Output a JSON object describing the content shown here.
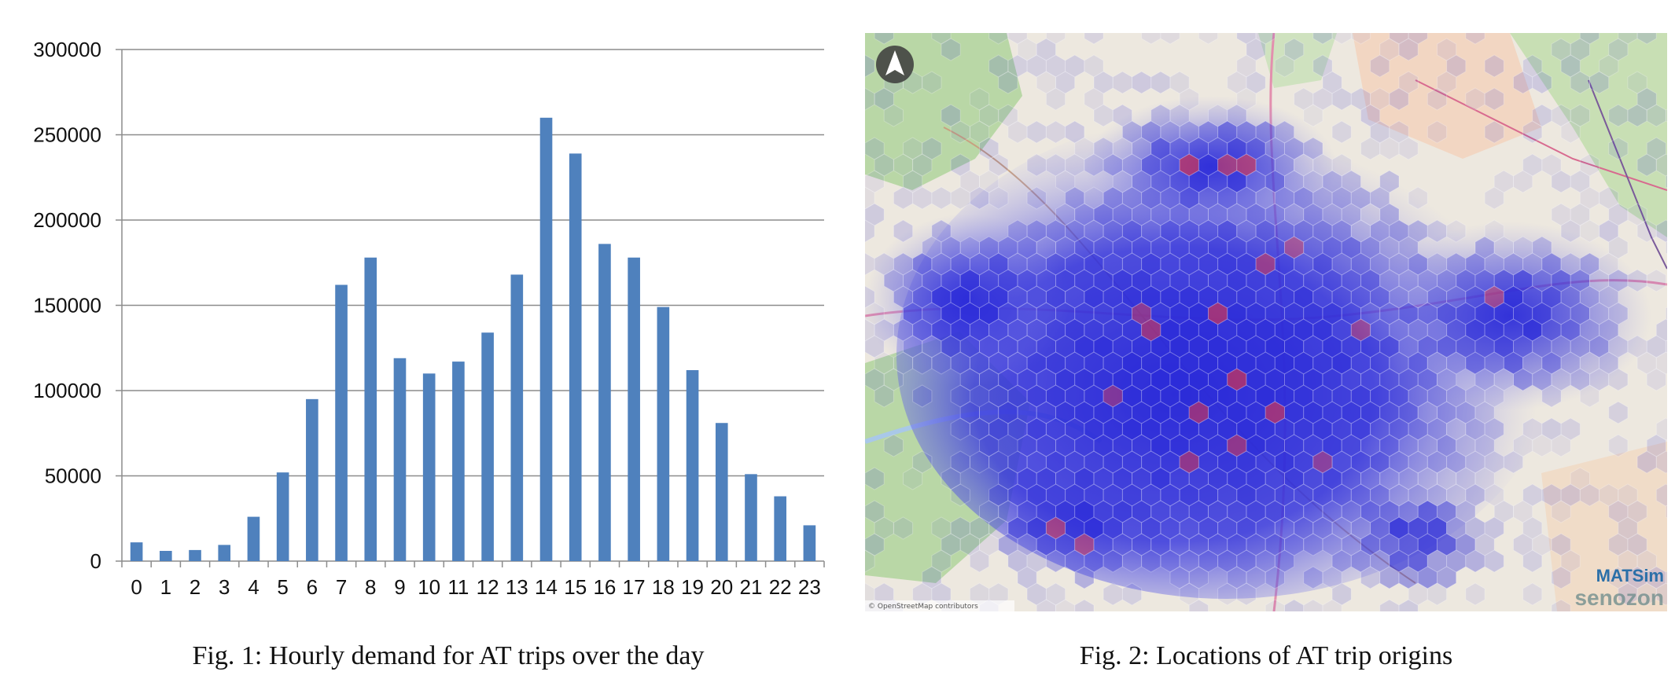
{
  "figure1": {
    "caption": "Fig. 1: Hourly demand for AT trips over the day",
    "chart_data": {
      "type": "bar",
      "categories": [
        "0",
        "1",
        "2",
        "3",
        "4",
        "5",
        "6",
        "7",
        "8",
        "9",
        "10",
        "11",
        "12",
        "13",
        "14",
        "15",
        "16",
        "17",
        "18",
        "19",
        "20",
        "21",
        "22",
        "23"
      ],
      "values": [
        11000,
        6000,
        6500,
        9500,
        26000,
        52000,
        95000,
        162000,
        178000,
        119000,
        110000,
        117000,
        134000,
        168000,
        260000,
        239000,
        186000,
        178000,
        149000,
        112000,
        81000,
        51000,
        38000,
        21000
      ],
      "ylim": [
        0,
        300000
      ],
      "yticks": [
        0,
        50000,
        100000,
        150000,
        200000,
        250000,
        300000
      ],
      "grid": true,
      "bar_color": "#4f81bd",
      "title": "",
      "xlabel": "",
      "ylabel": ""
    }
  },
  "figure2": {
    "caption": "Fig. 2: Locations of AT trip origins",
    "logo_matsim": "MATSim",
    "logo_senozon": "senozon",
    "attribution": "© OpenStreetMap contributors",
    "colors": {
      "hex_dense": "#2a2ad8",
      "hex_light": "#9fa0ee",
      "hotspot": "#b0306a"
    }
  }
}
